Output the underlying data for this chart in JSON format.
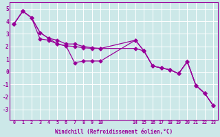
{
  "xtick_labels": [
    "0",
    "1",
    "2",
    "3",
    "4",
    "5",
    "6",
    "7",
    "8",
    "9",
    "10",
    "",
    "",
    "",
    "14",
    "15",
    "16",
    "17",
    "18",
    "19",
    "20",
    "21",
    "22",
    "23"
  ],
  "xtick_positions": [
    0,
    1,
    2,
    3,
    4,
    5,
    6,
    7,
    8,
    9,
    10,
    11,
    12,
    13,
    14,
    15,
    16,
    17,
    18,
    19,
    20,
    21,
    22,
    23
  ],
  "line1_xi": [
    0,
    1,
    2,
    3,
    4,
    5,
    6,
    7,
    8,
    9,
    10,
    14,
    15,
    16,
    17,
    18,
    19,
    20,
    21,
    22,
    23
  ],
  "line1_y": [
    3.8,
    4.8,
    4.3,
    3.1,
    2.65,
    2.2,
    2.05,
    0.7,
    0.85,
    0.85,
    0.85,
    2.5,
    1.65,
    0.45,
    0.3,
    0.15,
    -0.15,
    0.8,
    -1.1,
    -1.7,
    -2.7
  ],
  "line2_xi": [
    0,
    1,
    2,
    3,
    4,
    5,
    6,
    7,
    8,
    9,
    10,
    14,
    15,
    16,
    17,
    18,
    19,
    20,
    21,
    22,
    23
  ],
  "line2_y": [
    3.8,
    4.8,
    4.3,
    3.1,
    2.65,
    2.5,
    2.2,
    2.2,
    2.0,
    1.9,
    1.85,
    1.85,
    1.65,
    0.45,
    0.3,
    0.15,
    -0.15,
    0.8,
    -1.1,
    -1.7,
    -2.7
  ],
  "line3_xi": [
    0,
    1,
    2,
    3,
    4,
    5,
    6,
    7,
    8,
    9,
    10,
    14,
    15,
    16,
    17,
    18,
    19,
    20,
    21,
    22,
    23
  ],
  "line3_y": [
    3.8,
    4.8,
    4.3,
    2.6,
    2.5,
    2.2,
    2.05,
    2.0,
    1.9,
    1.85,
    1.85,
    2.5,
    1.65,
    0.45,
    0.3,
    0.15,
    -0.15,
    0.8,
    -1.1,
    -1.7,
    -2.7
  ],
  "color": "#990099",
  "bg_color": "#cce8e8",
  "grid_color": "#ffffff",
  "xlabel": "Windchill (Refroidissement éolien,°C)",
  "yticks": [
    -3,
    -2,
    -1,
    0,
    1,
    2,
    3,
    4,
    5
  ],
  "ylim": [
    -3.8,
    5.5
  ],
  "xlim": [
    -0.5,
    23.5
  ]
}
